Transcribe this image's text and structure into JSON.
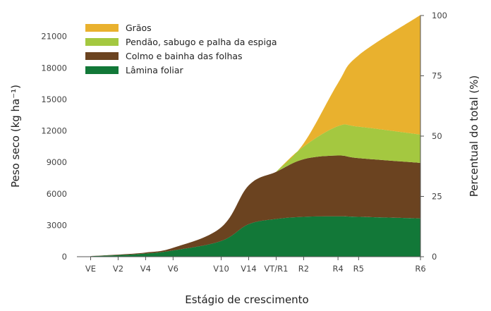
{
  "chart_data": {
    "type": "area",
    "stacked": true,
    "xlabel": "Estágio de crescimento",
    "ylabel": "Peso seco (kg ha⁻¹)",
    "y2label": "Percentual do total (%)",
    "ylim": [
      0,
      23000
    ],
    "y2lim": [
      0,
      100
    ],
    "yticks": [
      0,
      3000,
      6000,
      9000,
      12000,
      15000,
      18000,
      21000
    ],
    "y2ticks": [
      0,
      25,
      50,
      75,
      100
    ],
    "categories": [
      "VE",
      "V2",
      "V4",
      "V6",
      "V10",
      "V14",
      "VT/R1",
      "R2",
      "R4",
      "R5",
      "R6"
    ],
    "x_positions": [
      0.5,
      1.5,
      2.5,
      3.5,
      5.25,
      6.25,
      7.25,
      8.25,
      9.5,
      10.25,
      12.5
    ],
    "x_range": [
      0,
      12.5
    ],
    "legend_position": "top-left",
    "series": [
      {
        "name": "Lâmina foliar",
        "color": "#127838",
        "values": [
          50,
          150,
          300,
          600,
          1500,
          3100,
          3600,
          3800,
          3850,
          3800,
          3650
        ]
      },
      {
        "name": "Colmo e bainha das folhas",
        "color": "#6b4320",
        "values": [
          10,
          50,
          100,
          250,
          1300,
          3700,
          4500,
          5500,
          5800,
          5600,
          5300
        ]
      },
      {
        "name": "Pendão, sabugo e palha da espiga",
        "color": "#a4c840",
        "values": [
          0,
          0,
          0,
          0,
          0,
          0,
          0,
          1200,
          2800,
          3000,
          2700
        ]
      },
      {
        "name": "Grãos",
        "color": "#e9b12e",
        "values": [
          0,
          0,
          0,
          0,
          0,
          0,
          0,
          300,
          4100,
          6800,
          11400
        ]
      }
    ]
  }
}
